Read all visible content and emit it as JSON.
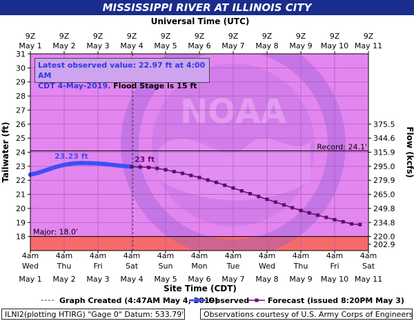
{
  "title": "MISSISSIPPI RIVER AT ILLINOIS CITY",
  "chart_data": {
    "type": "line",
    "top_axis_label": "Universal Time (UTC)",
    "bottom_axis_label": "Site Time (CDT)",
    "ylabel": "Tailwater (ft)",
    "y2label": "Flow (kcfs)",
    "ylim": [
      17,
      31
    ],
    "grid": true,
    "top_ticks": [
      {
        "hour": "9Z",
        "date": "May 1"
      },
      {
        "hour": "9Z",
        "date": "May 2"
      },
      {
        "hour": "9Z",
        "date": "May 3"
      },
      {
        "hour": "9Z",
        "date": "May 4"
      },
      {
        "hour": "9Z",
        "date": "May 5"
      },
      {
        "hour": "9Z",
        "date": "May 6"
      },
      {
        "hour": "9Z",
        "date": "May 7"
      },
      {
        "hour": "9Z",
        "date": "May 8"
      },
      {
        "hour": "9Z",
        "date": "May 9"
      },
      {
        "hour": "9Z",
        "date": "May 10"
      },
      {
        "hour": "9Z",
        "date": "May 11"
      }
    ],
    "bottom_ticks": [
      {
        "hour": "4am",
        "day": "Wed",
        "date": "May 1"
      },
      {
        "hour": "4am",
        "day": "Thu",
        "date": "May 2"
      },
      {
        "hour": "4am",
        "day": "Fri",
        "date": "May 3"
      },
      {
        "hour": "4am",
        "day": "Sat",
        "date": "May 4"
      },
      {
        "hour": "4am",
        "day": "Sun",
        "date": "May 5"
      },
      {
        "hour": "4am",
        "day": "Mon",
        "date": "May 6"
      },
      {
        "hour": "4am",
        "day": "Tue",
        "date": "May 7"
      },
      {
        "hour": "4am",
        "day": "Wed",
        "date": "May 8"
      },
      {
        "hour": "4am",
        "day": "Thu",
        "date": "May 9"
      },
      {
        "hour": "4am",
        "day": "Fri",
        "date": "May 10"
      },
      {
        "hour": "4am",
        "day": "Sat",
        "date": "May 11"
      }
    ],
    "y_ticks": [
      18,
      19,
      20,
      21,
      22,
      23,
      24,
      25,
      26,
      27,
      28,
      29,
      30,
      31
    ],
    "flow_ticks": [
      {
        "stage": 17.45,
        "label": "202.9"
      },
      {
        "stage": 18.0,
        "label": "220.0"
      },
      {
        "stage": 19.0,
        "label": "234.8"
      },
      {
        "stage": 20.0,
        "label": "249.8"
      },
      {
        "stage": 21.0,
        "label": "265.0"
      },
      {
        "stage": 22.0,
        "label": "279.9"
      },
      {
        "stage": 23.0,
        "label": "295.0"
      },
      {
        "stage": 24.0,
        "label": "315.9"
      },
      {
        "stage": 25.0,
        "label": "344.6"
      },
      {
        "stage": 26.0,
        "label": "375.5"
      }
    ],
    "record": {
      "value": 24.1,
      "label": "Record: 24.1'"
    },
    "major": {
      "value": 18.0,
      "label": "Major: 18.0'"
    },
    "observed": {
      "name": "Observed",
      "x": [
        0.0,
        0.25,
        0.5,
        0.75,
        1.0,
        1.25,
        1.5,
        1.75,
        2.0,
        2.25,
        2.5,
        2.75,
        3.0
      ],
      "values": [
        22.4,
        22.55,
        22.75,
        22.95,
        23.1,
        23.2,
        23.23,
        23.22,
        23.2,
        23.15,
        23.08,
        23.02,
        22.97
      ],
      "peak_label": "23.23 ft",
      "peak_index": 6,
      "last_label": "23 ft"
    },
    "forecast": {
      "name": "Forecast (issued 8:20PM May 3)",
      "x": [
        3.0,
        3.25,
        3.5,
        3.75,
        4.0,
        4.25,
        4.5,
        4.75,
        5.0,
        5.25,
        5.5,
        5.75,
        6.0,
        6.25,
        6.5,
        6.75,
        7.0,
        7.25,
        7.5,
        7.75,
        8.0,
        8.25,
        8.5,
        8.75,
        9.0,
        9.25,
        9.5,
        9.75
      ],
      "values": [
        22.97,
        22.95,
        22.92,
        22.85,
        22.75,
        22.62,
        22.5,
        22.35,
        22.2,
        22.02,
        21.85,
        21.65,
        21.45,
        21.25,
        21.05,
        20.85,
        20.65,
        20.45,
        20.25,
        20.05,
        19.85,
        19.68,
        19.52,
        19.36,
        19.2,
        19.05,
        18.9,
        18.85
      ]
    },
    "graph_created": {
      "x": 3.03,
      "label": "Graph Created (4:47AM May 4, 2019)"
    },
    "colors": {
      "plot_bg": "#e486f0",
      "major_band": "#f66a6a",
      "observed": "#3d4ff5",
      "forecast": "#5c0f6c",
      "title_bg": "#1a2c8c"
    }
  },
  "info_box": {
    "line1": "Latest observed value: 22.97 ft at 4:00 AM",
    "line2_a": "CDT 4-May-2019.",
    "line2_b": " Flood Stage is 15 ft"
  },
  "watermark": {
    "top": "NATIONAL OCEANIC AND ATMOSPHERIC ADMINISTRATION",
    "center": "NOAA",
    "bottom": "U.S. DEPARTMENT OF COMMERCE"
  },
  "footer": {
    "left": "ILNI2(plotting HTIRG) \"Gage 0\" Datum: 533.79'",
    "right": "Observations courtesy of U.S. Army Corps of Engineers"
  }
}
